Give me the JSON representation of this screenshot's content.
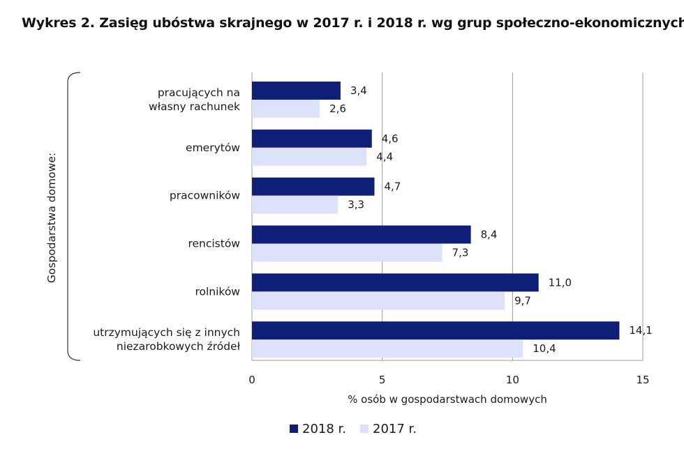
{
  "title": "Wykres 2. Zasięg ubóstwa skrajnego w 2017 r. i 2018 r. wg grup społeczno-ekonomicznych",
  "chart_data": {
    "type": "bar",
    "orientation": "horizontal",
    "categories": [
      [
        "pracujących na",
        "własny rachunek"
      ],
      [
        "emerytów"
      ],
      [
        "pracowników"
      ],
      [
        "rencistów"
      ],
      [
        "rolników"
      ],
      [
        "utrzymujących się z innych",
        "niezarobkowych źródeł"
      ]
    ],
    "series": [
      {
        "name": "2018 r.",
        "color": "#0f1f78",
        "values": [
          3.4,
          4.6,
          4.7,
          8.4,
          11.0,
          14.1
        ],
        "labels": [
          "3,4",
          "4,6",
          "4,7",
          "8,4",
          "11,0",
          "14,1"
        ]
      },
      {
        "name": "2017 r.",
        "color": "#dde2fb",
        "values": [
          2.6,
          4.4,
          3.3,
          7.3,
          9.7,
          10.4
        ],
        "labels": [
          "2,6",
          "4,4",
          "3,3",
          "7,3",
          "9,7",
          "10,4"
        ]
      }
    ],
    "xlim": [
      0,
      15
    ],
    "xticks": [
      0,
      5,
      10,
      15
    ],
    "xlabel": "% osób w gospodarstwach domowych",
    "group_label": "Gospodarstwa domowe:",
    "grid": "vertical",
    "legend": "bottom"
  }
}
